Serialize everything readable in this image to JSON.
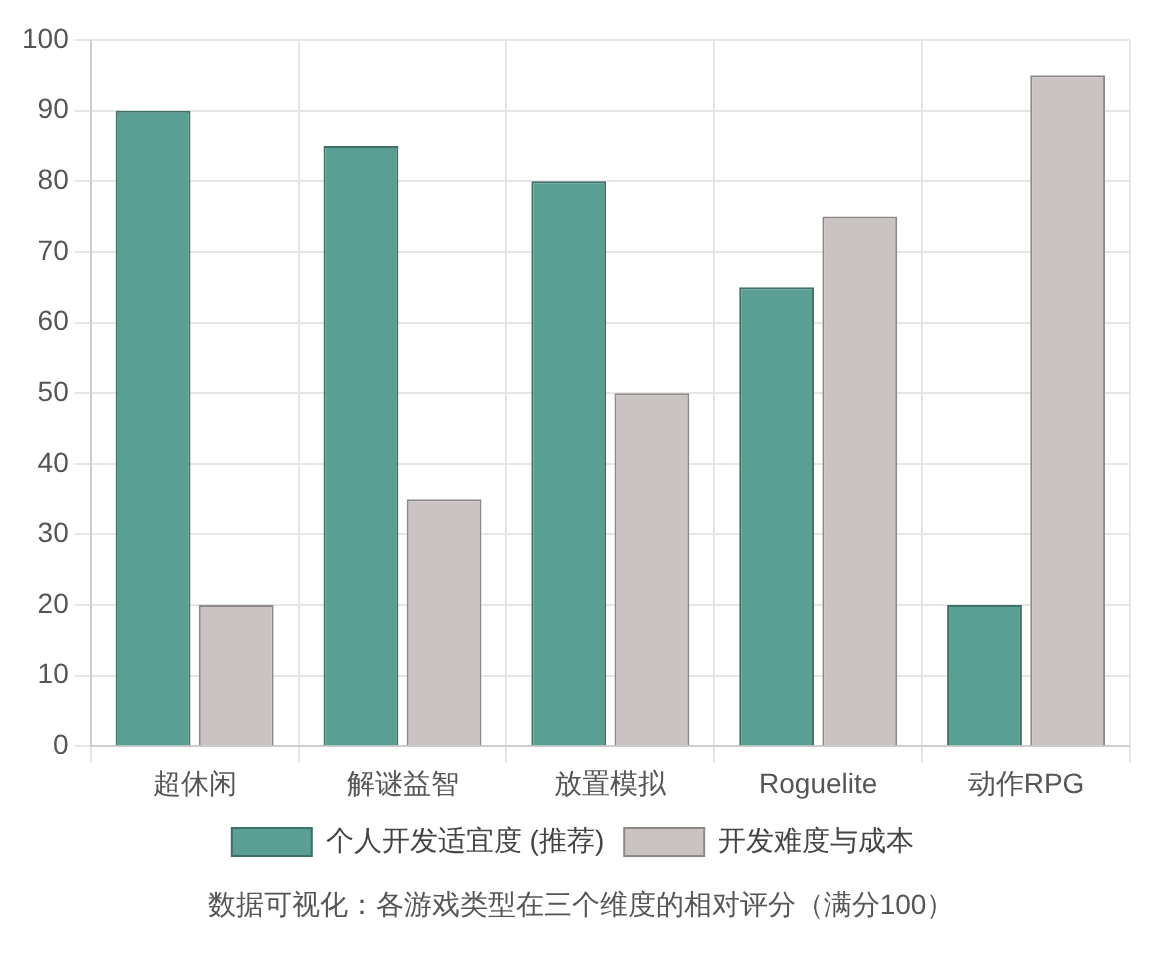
{
  "chart_data": {
    "type": "bar",
    "categories": [
      "超休闲",
      "解谜益智",
      "放置模拟",
      "Roguelite",
      "动作RPG"
    ],
    "series": [
      {
        "name": "个人开发适宜度 (推荐)",
        "color": "#5a9e94",
        "values": [
          90,
          85,
          80,
          65,
          20
        ]
      },
      {
        "name": "开发难度与成本",
        "color": "#c9c4c2",
        "values": [
          20,
          35,
          50,
          75,
          95
        ]
      }
    ],
    "ylim": [
      0,
      100
    ],
    "yticks": [
      0,
      10,
      20,
      30,
      40,
      50,
      60,
      70,
      80,
      90,
      100
    ],
    "grid": true,
    "legend": "bottom",
    "annotations": [
      "数据可视化：各游戏类型在三个维度的相对评分（满分100）"
    ]
  }
}
